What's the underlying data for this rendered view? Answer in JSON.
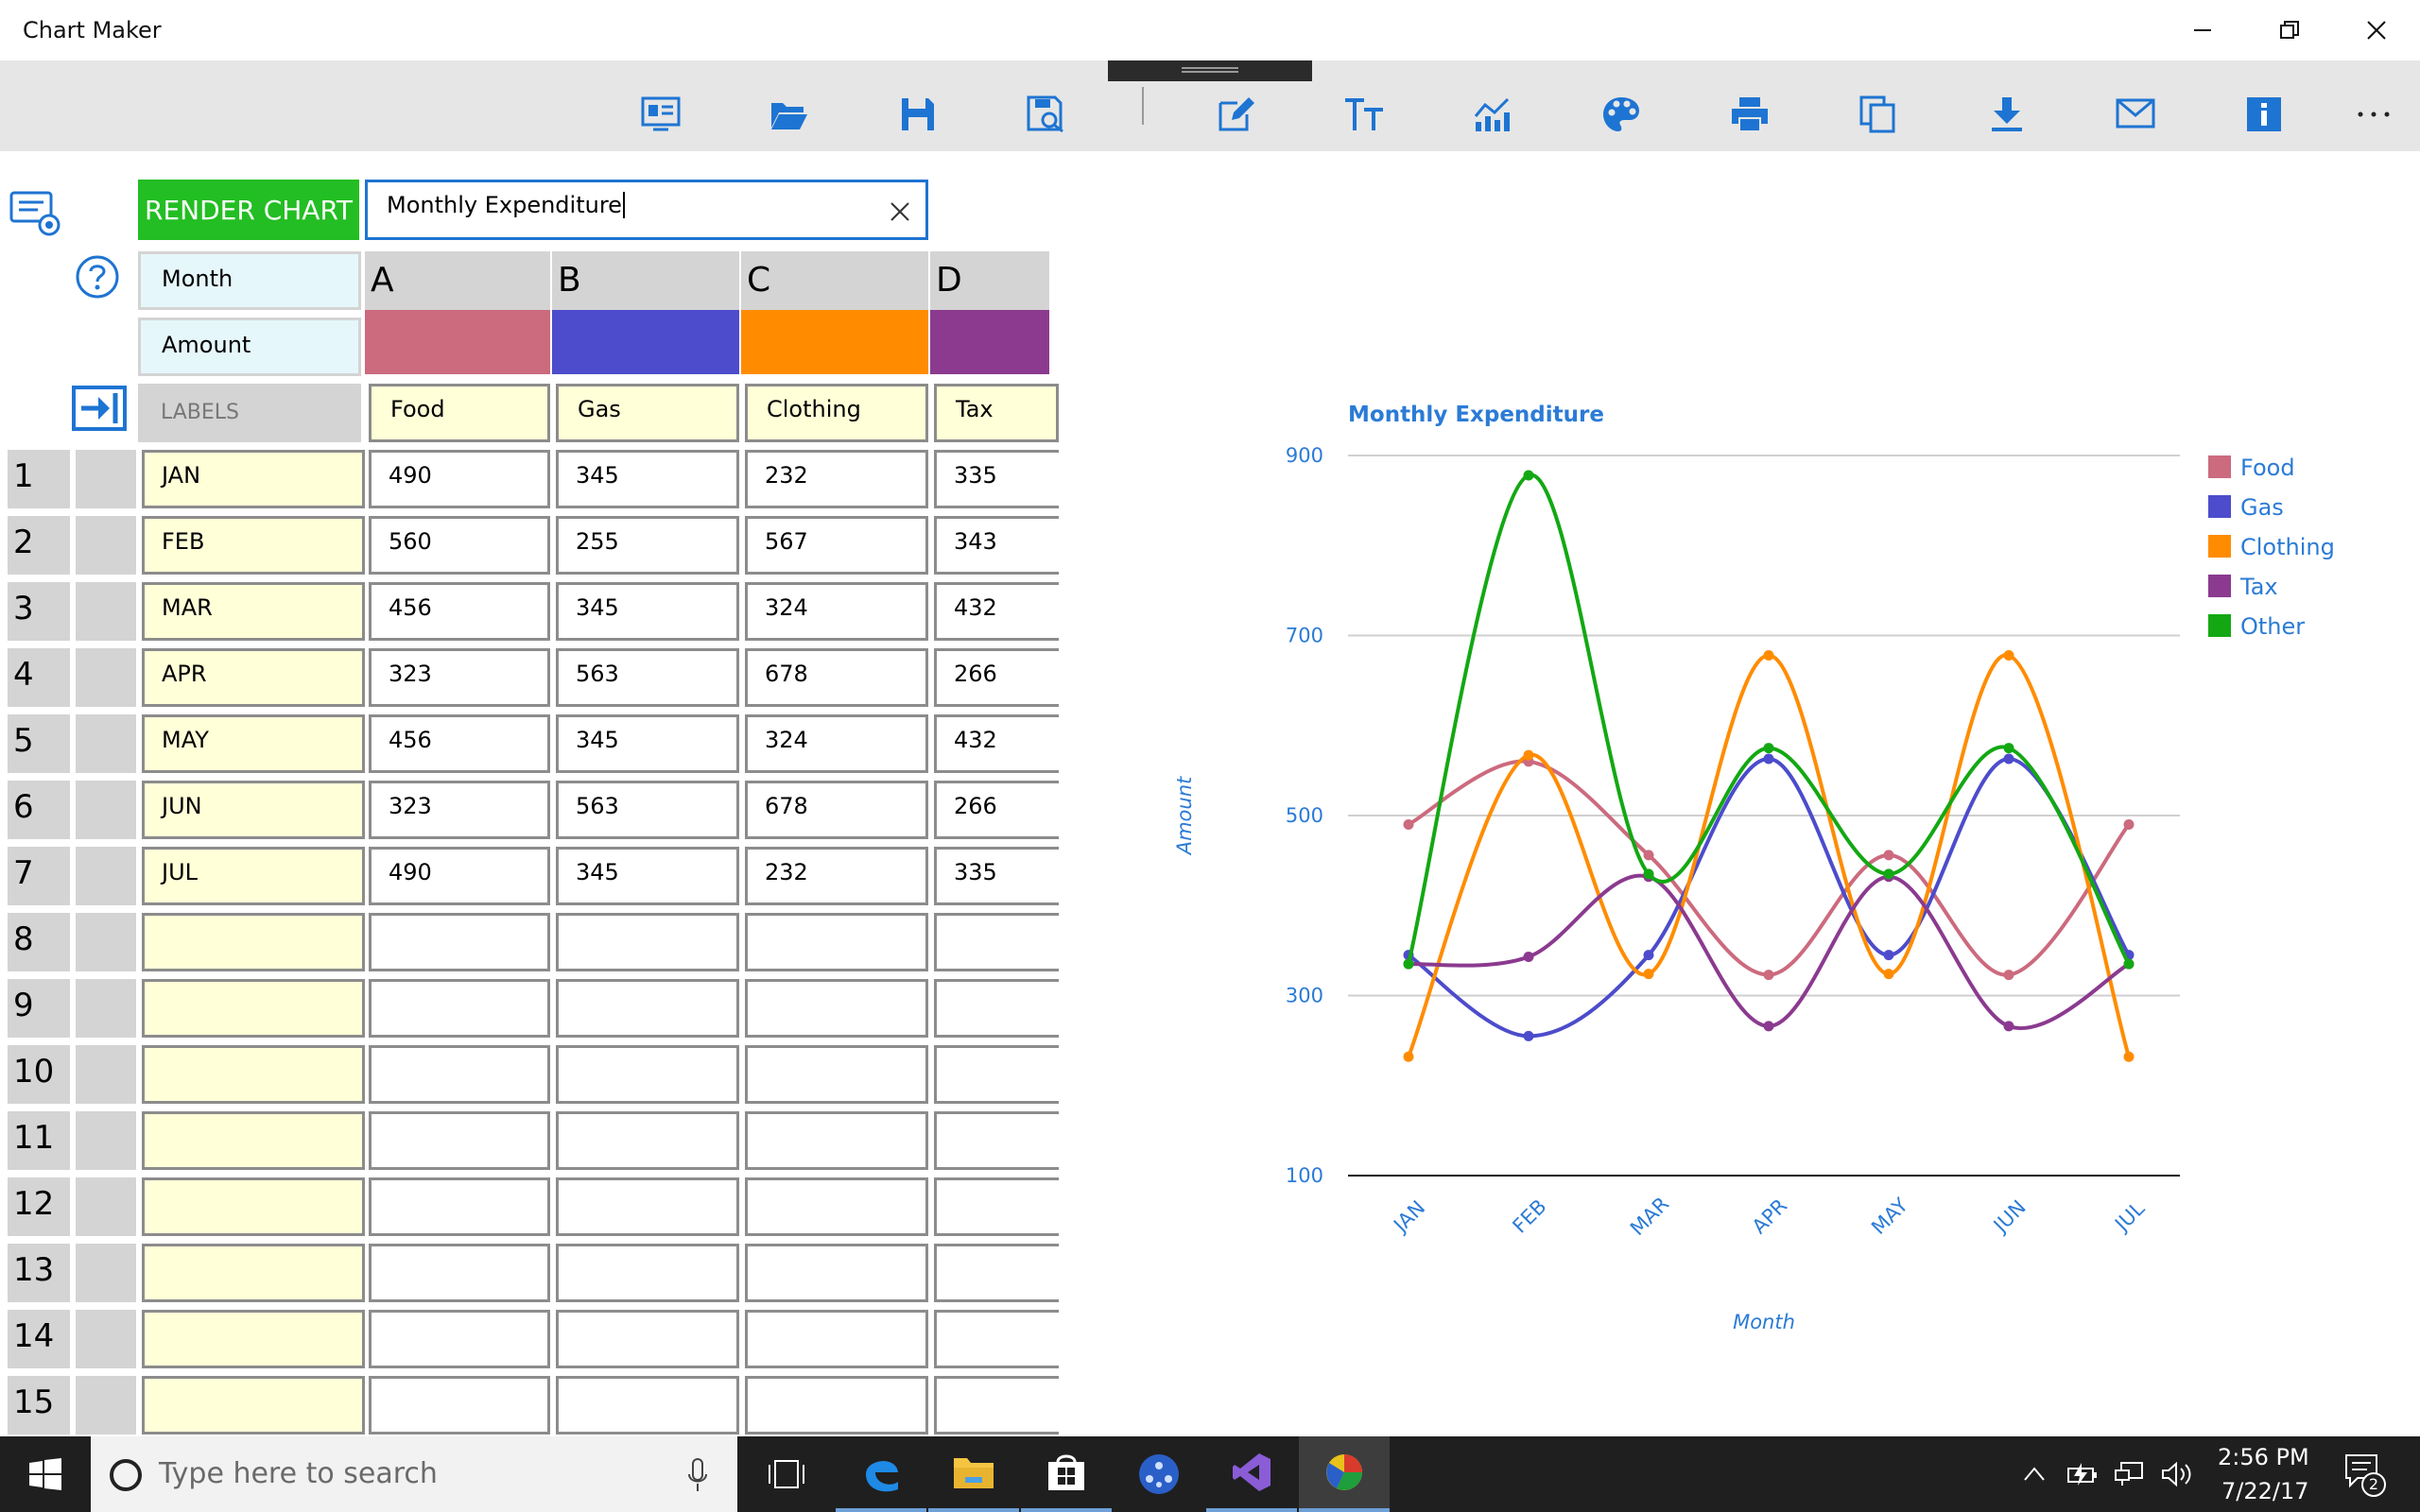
{
  "window": {
    "title": "Chart Maker"
  },
  "toolbar": {
    "items": [
      "new-chart-icon",
      "open-folder-icon",
      "save-icon",
      "save-as-icon",
      "edit-icon",
      "text-size-icon",
      "chart-type-icon",
      "palette-icon",
      "print-icon",
      "copy-icon",
      "download-icon",
      "mail-icon",
      "info-icon",
      "more-icon"
    ]
  },
  "editor": {
    "render_label": "RENDER CHART",
    "chart_title_value": "Monthly Expenditure",
    "x_axis_name": "Month",
    "y_axis_name": "Amount",
    "labels_header": "LABELS",
    "columns": [
      {
        "letter": "A",
        "name": "Food",
        "color": "#cc6a7e"
      },
      {
        "letter": "B",
        "name": "Gas",
        "color": "#4c4ccc"
      },
      {
        "letter": "C",
        "name": "Clothing",
        "color": "#ff8c00"
      },
      {
        "letter": "D",
        "name": "Tax",
        "color": "#8b3a8f"
      }
    ],
    "rows": [
      {
        "num": "1",
        "label": "JAN",
        "values": [
          "490",
          "345",
          "232",
          "335"
        ]
      },
      {
        "num": "2",
        "label": "FEB",
        "values": [
          "560",
          "255",
          "567",
          "343"
        ]
      },
      {
        "num": "3",
        "label": "MAR",
        "values": [
          "456",
          "345",
          "324",
          "432"
        ]
      },
      {
        "num": "4",
        "label": "APR",
        "values": [
          "323",
          "563",
          "678",
          "266"
        ]
      },
      {
        "num": "5",
        "label": "MAY",
        "values": [
          "456",
          "345",
          "324",
          "432"
        ]
      },
      {
        "num": "6",
        "label": "JUN",
        "values": [
          "323",
          "563",
          "678",
          "266"
        ]
      },
      {
        "num": "7",
        "label": "JUL",
        "values": [
          "490",
          "345",
          "232",
          "335"
        ]
      },
      {
        "num": "8",
        "label": "",
        "values": [
          "",
          "",
          "",
          ""
        ]
      },
      {
        "num": "9",
        "label": "",
        "values": [
          "",
          "",
          "",
          ""
        ]
      },
      {
        "num": "10",
        "label": "",
        "values": [
          "",
          "",
          "",
          ""
        ]
      },
      {
        "num": "11",
        "label": "",
        "values": [
          "",
          "",
          "",
          ""
        ]
      },
      {
        "num": "12",
        "label": "",
        "values": [
          "",
          "",
          "",
          ""
        ]
      },
      {
        "num": "13",
        "label": "",
        "values": [
          "",
          "",
          "",
          ""
        ]
      },
      {
        "num": "14",
        "label": "",
        "values": [
          "",
          "",
          "",
          ""
        ]
      },
      {
        "num": "15",
        "label": "",
        "values": [
          "",
          "",
          "",
          ""
        ]
      }
    ]
  },
  "chart_data": {
    "type": "line",
    "title": "Monthly Expenditure",
    "xlabel": "Month",
    "ylabel": "Amount",
    "categories": [
      "JAN",
      "FEB",
      "MAR",
      "APR",
      "MAY",
      "JUN",
      "JUL"
    ],
    "ylim": [
      100,
      900
    ],
    "yticks": [
      100,
      300,
      500,
      700,
      900
    ],
    "grid": true,
    "legend": "right",
    "series": [
      {
        "name": "Food",
        "color": "#cc6a7e",
        "values": [
          490,
          560,
          456,
          323,
          456,
          323,
          490
        ]
      },
      {
        "name": "Gas",
        "color": "#4c4ccc",
        "values": [
          345,
          255,
          345,
          563,
          345,
          563,
          345
        ]
      },
      {
        "name": "Clothing",
        "color": "#ff8c00",
        "values": [
          232,
          567,
          324,
          678,
          324,
          678,
          232
        ]
      },
      {
        "name": "Tax",
        "color": "#8b3a8f",
        "values": [
          335,
          343,
          432,
          266,
          432,
          266,
          335
        ]
      },
      {
        "name": "Other",
        "color": "#13a813",
        "values": [
          335,
          878,
          435,
          575,
          435,
          575,
          335
        ]
      }
    ]
  },
  "taskbar": {
    "search_placeholder": "Type here to search",
    "time": "2:56 PM",
    "date": "7/22/17",
    "notification_count": "2"
  }
}
